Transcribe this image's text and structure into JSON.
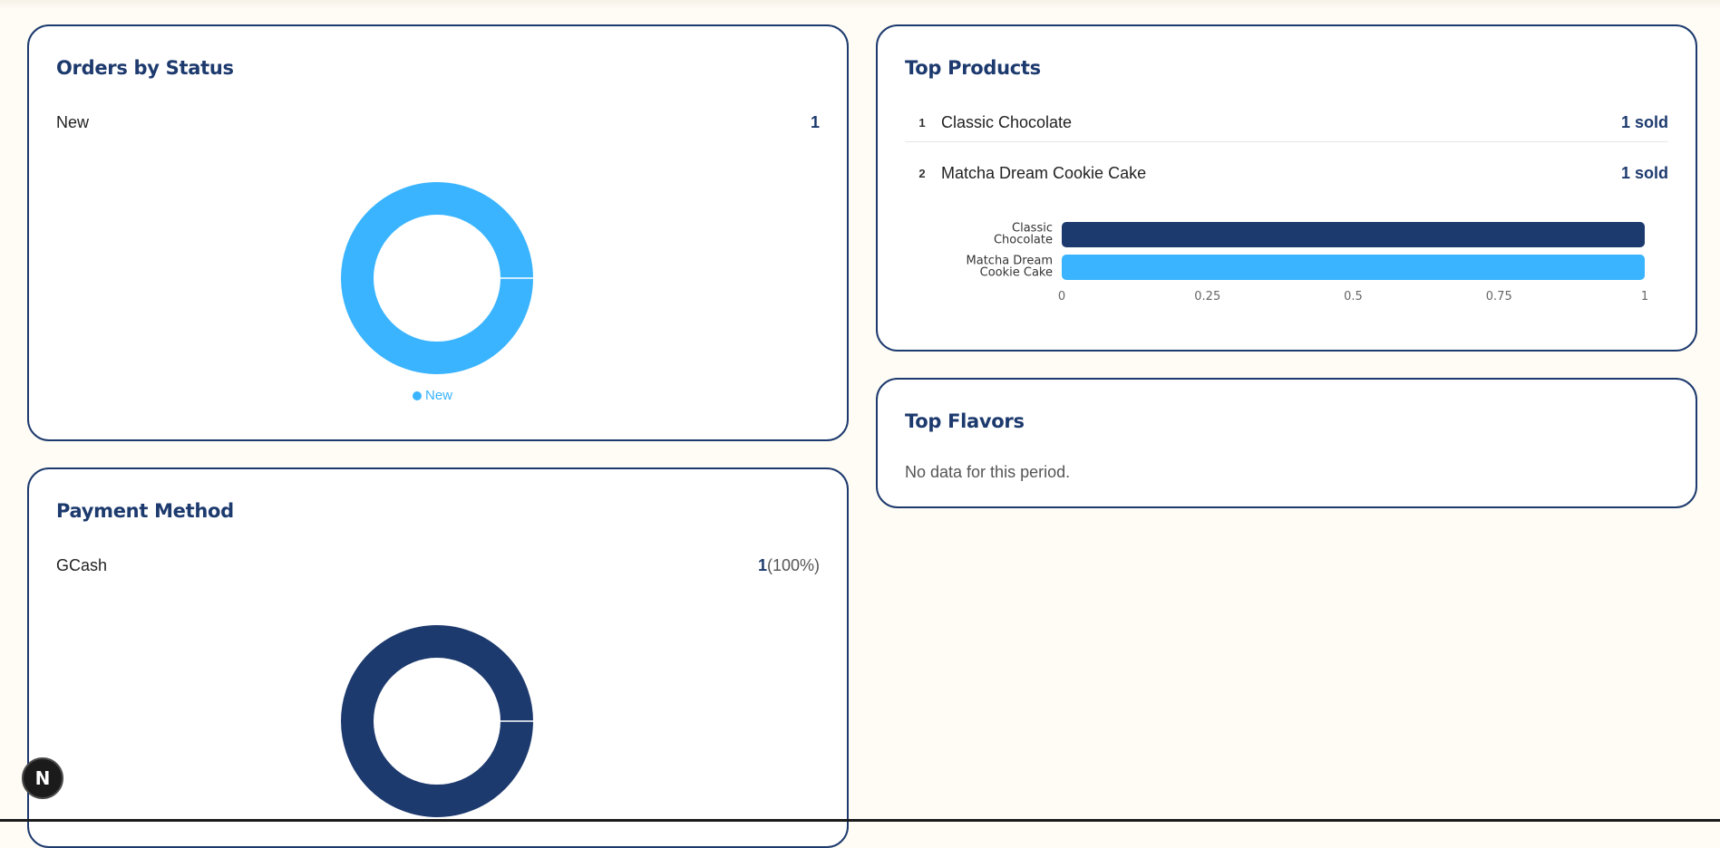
{
  "orders_by_status": {
    "title": "Orders by Status",
    "rows": [
      {
        "label": "New",
        "count": "1"
      }
    ],
    "chart_data": {
      "type": "pie",
      "categories": [
        "New"
      ],
      "values": [
        1
      ],
      "colors": [
        "#3ab4ff"
      ],
      "legend": "bottom"
    }
  },
  "payment_method": {
    "title": "Payment Method",
    "rows": [
      {
        "label": "GCash",
        "count": "1",
        "percent": "(100%)"
      }
    ],
    "chart_data": {
      "type": "pie",
      "categories": [
        "GCash"
      ],
      "values": [
        1
      ],
      "colors": [
        "#1d3a6e"
      ]
    }
  },
  "top_products": {
    "title": "Top Products",
    "items": [
      {
        "rank": "1",
        "name": "Classic Chocolate",
        "sold": "1 sold"
      },
      {
        "rank": "2",
        "name": "Matcha Dream Cookie Cake",
        "sold": "1 sold"
      }
    ],
    "chart_data": {
      "type": "bar",
      "orientation": "horizontal",
      "categories": [
        [
          "Classic",
          "Chocolate"
        ],
        [
          "Matcha Dream",
          "Cookie Cake"
        ]
      ],
      "values": [
        1,
        1
      ],
      "colors": [
        "#1d3a6e",
        "#3ab4ff"
      ],
      "xlim": [
        0,
        1
      ],
      "xticks": [
        "0",
        "0.25",
        "0.5",
        "0.75",
        "1"
      ],
      "grid": false
    }
  },
  "top_flavors": {
    "title": "Top Flavors",
    "empty_message": "No data for this period."
  },
  "fab": {
    "label": "N"
  }
}
